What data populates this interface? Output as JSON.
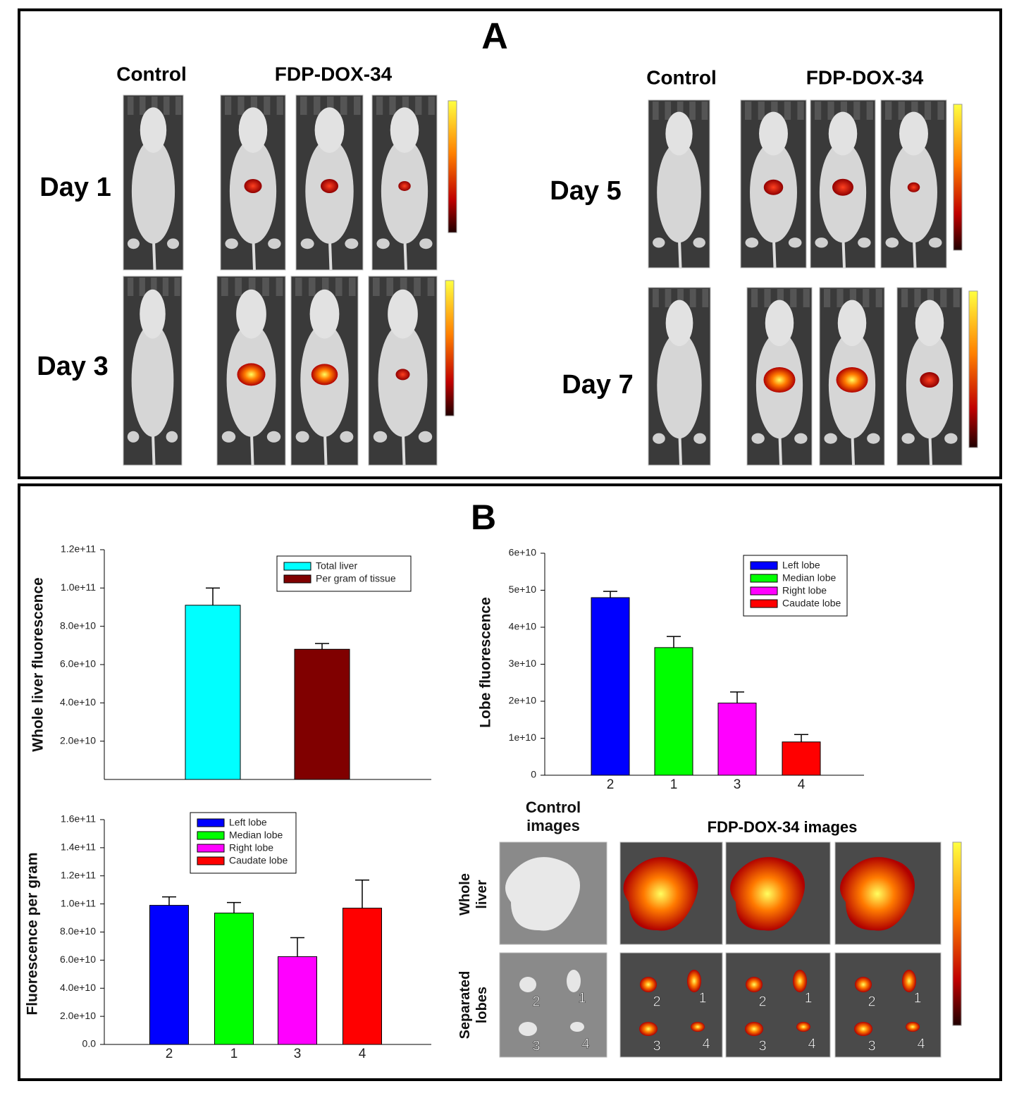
{
  "panel_a": {
    "label": "A",
    "groups": [
      {
        "control": "Control",
        "treated": "FDP-DOX-34",
        "days": [
          "Day 1",
          "Day 3"
        ]
      },
      {
        "control": "Control",
        "treated": "FDP-DOX-34",
        "days": [
          "Day 5",
          "Day 7"
        ]
      }
    ]
  },
  "panel_b": {
    "label": "B",
    "control_images": "Control images",
    "treated_images": "FDP-DOX-34 images",
    "rows": [
      "Whole liver",
      "Separated lobes"
    ],
    "lobe_labels": [
      "2",
      "1",
      "3",
      "4"
    ]
  },
  "chart_data": [
    {
      "type": "bar",
      "ylabel": "Whole liver fluorescence",
      "categories": [
        null,
        null
      ],
      "series": [
        {
          "name": "Total liver",
          "color": "#00ffff",
          "values": [
            91000000000,
            null
          ],
          "errors": [
            9000000000,
            null
          ]
        },
        {
          "name": "Per gram of tissue",
          "color": "#800000",
          "values": [
            null,
            68000000000
          ],
          "errors": [
            null,
            3000000000
          ]
        }
      ],
      "ylim": [
        0,
        120000000000
      ],
      "yticks": [
        {
          "value": 20000000000,
          "label": "2.0e+10"
        },
        {
          "value": 40000000000,
          "label": "4.0e+10"
        },
        {
          "value": 60000000000,
          "label": "6.0e+10"
        },
        {
          "value": 80000000000,
          "label": "8.0e+10"
        },
        {
          "value": 100000000000,
          "label": "1.0e+11"
        },
        {
          "value": 120000000000,
          "label": "1.2e+11"
        }
      ]
    },
    {
      "type": "bar",
      "ylabel": "Lobe fluorescence",
      "categories": [
        "2",
        "1",
        "3",
        "4"
      ],
      "series": [
        {
          "name": "Left lobe",
          "color": "#0000ff",
          "values": [
            48000000000,
            null,
            null,
            null
          ],
          "errors": [
            1700000000,
            null,
            null,
            null
          ]
        },
        {
          "name": "Median lobe",
          "color": "#00ff00",
          "values": [
            null,
            34500000000,
            null,
            null
          ],
          "errors": [
            null,
            3000000000,
            null,
            null
          ]
        },
        {
          "name": "Right lobe",
          "color": "#ff00ff",
          "values": [
            null,
            null,
            19500000000,
            null
          ],
          "errors": [
            null,
            null,
            3000000000,
            null
          ]
        },
        {
          "name": "Caudate lobe",
          "color": "#ff0000",
          "values": [
            null,
            null,
            null,
            9000000000
          ],
          "errors": [
            null,
            null,
            null,
            2000000000
          ]
        }
      ],
      "ylim": [
        0,
        60000000000
      ],
      "yticks": [
        0,
        {
          "value": 10000000000,
          "label": "1e+10"
        },
        {
          "value": 20000000000,
          "label": "2e+10"
        },
        {
          "value": 30000000000,
          "label": "3e+10"
        },
        {
          "value": 40000000000,
          "label": "4e+10"
        },
        {
          "value": 50000000000,
          "label": "5e+10"
        },
        {
          "value": 60000000000,
          "label": "6e+10"
        }
      ]
    },
    {
      "type": "bar",
      "ylabel": "Fluorescence per gram",
      "categories": [
        "2",
        "1",
        "3",
        "4"
      ],
      "series": [
        {
          "name": "Left lobe",
          "color": "#0000ff",
          "values": [
            99000000000,
            null,
            null,
            null
          ],
          "errors": [
            6000000000,
            null,
            null,
            null
          ]
        },
        {
          "name": "Median lobe",
          "color": "#00ff00",
          "values": [
            null,
            93500000000,
            null,
            null
          ],
          "errors": [
            null,
            7500000000,
            null,
            null
          ]
        },
        {
          "name": "Right lobe",
          "color": "#ff00ff",
          "values": [
            null,
            null,
            62500000000,
            null
          ],
          "errors": [
            null,
            null,
            13500000000,
            null
          ]
        },
        {
          "name": "Caudate lobe",
          "color": "#ff0000",
          "values": [
            null,
            null,
            null,
            97000000000
          ],
          "errors": [
            null,
            null,
            null,
            20000000000
          ]
        }
      ],
      "ylim": [
        0,
        160000000000
      ],
      "yticks": [
        {
          "value": 0,
          "label": "0.0"
        },
        {
          "value": 20000000000,
          "label": "2.0e+10"
        },
        {
          "value": 40000000000,
          "label": "4.0e+10"
        },
        {
          "value": 60000000000,
          "label": "6.0e+10"
        },
        {
          "value": 80000000000,
          "label": "8.0e+10"
        },
        {
          "value": 100000000000,
          "label": "1.0e+11"
        },
        {
          "value": 120000000000,
          "label": "1.2e+11"
        },
        {
          "value": 140000000000,
          "label": "1.4e+11"
        },
        {
          "value": 160000000000,
          "label": "1.6e+11"
        }
      ]
    }
  ]
}
